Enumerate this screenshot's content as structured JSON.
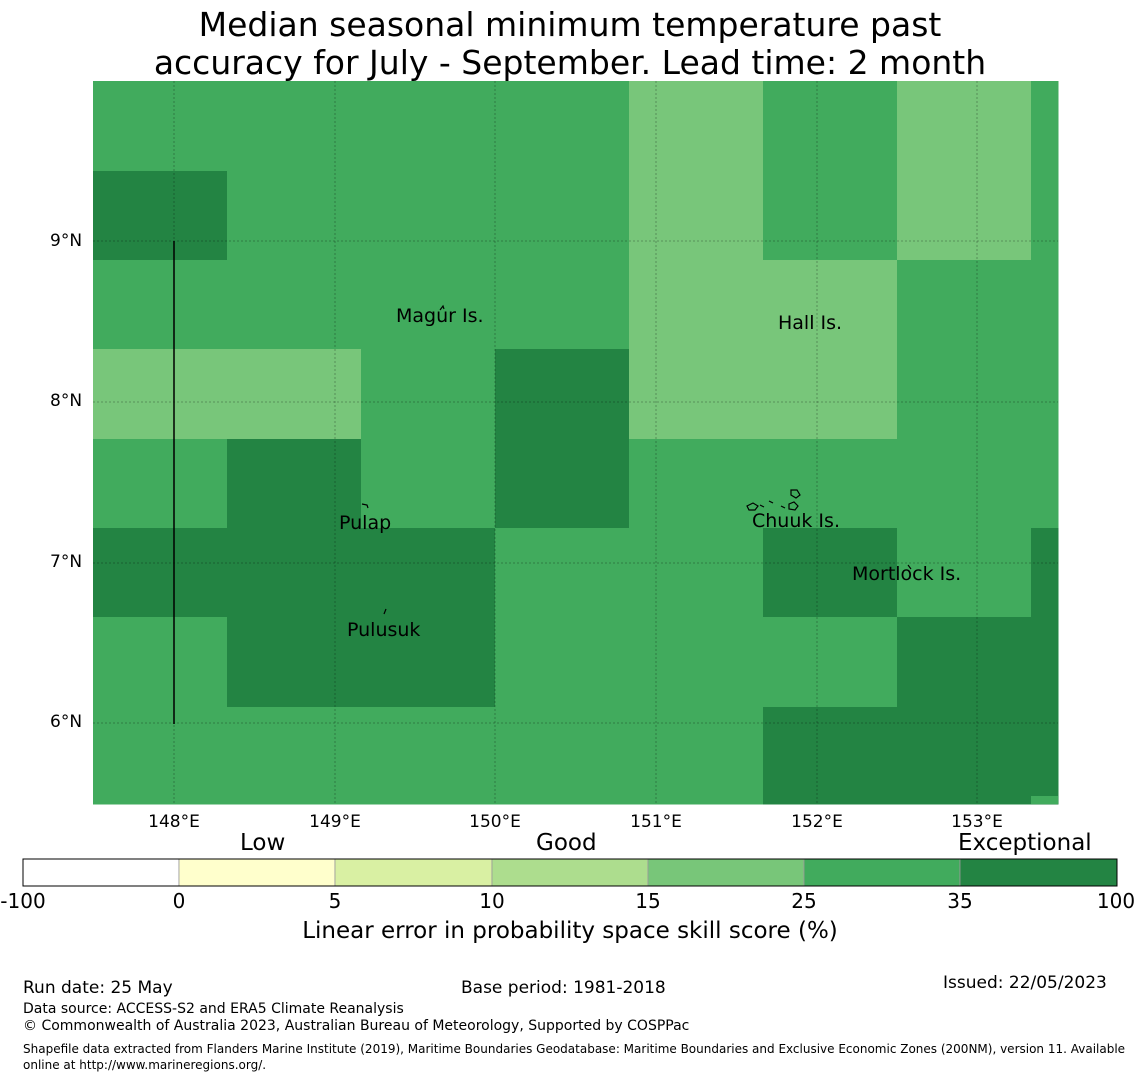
{
  "title": {
    "line1": "Median seasonal minimum temperature past",
    "line2": "accuracy for July - September. Lead time: 2 month"
  },
  "map": {
    "lat_labels": [
      "9°N",
      "8°N",
      "7°N",
      "6°N"
    ],
    "lon_labels": [
      "148°E",
      "149°E",
      "150°E",
      "151°E",
      "152°E",
      "153°E"
    ],
    "places": [
      "Magur Is.",
      "Hall Is.",
      "Pulap",
      "Chuuk Is.",
      "Mortlock Is.",
      "Pulusuk"
    ],
    "colors": {
      "band_15_25": "#78c67a",
      "band_25_35": "#41ab5d",
      "band_35_100": "#238443"
    }
  },
  "colorbar": {
    "categories": [
      "Low",
      "Good",
      "Exceptional"
    ],
    "ticks": [
      "-100",
      "0",
      "5",
      "10",
      "15",
      "25",
      "35",
      "100"
    ],
    "colors": [
      "#ffffff",
      "#ffffcc",
      "#d9f0a3",
      "#addd8e",
      "#78c679",
      "#41ab5d",
      "#238443"
    ],
    "axis_label": "Linear error in probability space skill score (%)"
  },
  "footer": {
    "run_date": "Run date: 25 May",
    "base_period": "Base period: 1981-2018",
    "issued": "Issued: 22/05/2023",
    "data_source": "Data source: ACCESS-S2 and ERA5 Climate Reanalysis",
    "copyright": "© Commonwealth of Australia 2023, Australian Bureau of Meteorology, Supported by COSPPac",
    "shapefile": "Shapefile data extracted from Flanders Marine Institute (2019), Maritime Boundaries Geodatabase: Maritime Boundaries and Exclusive Economic Zones (200NM), version 11. Available online at http://www.marineregions.org/."
  }
}
